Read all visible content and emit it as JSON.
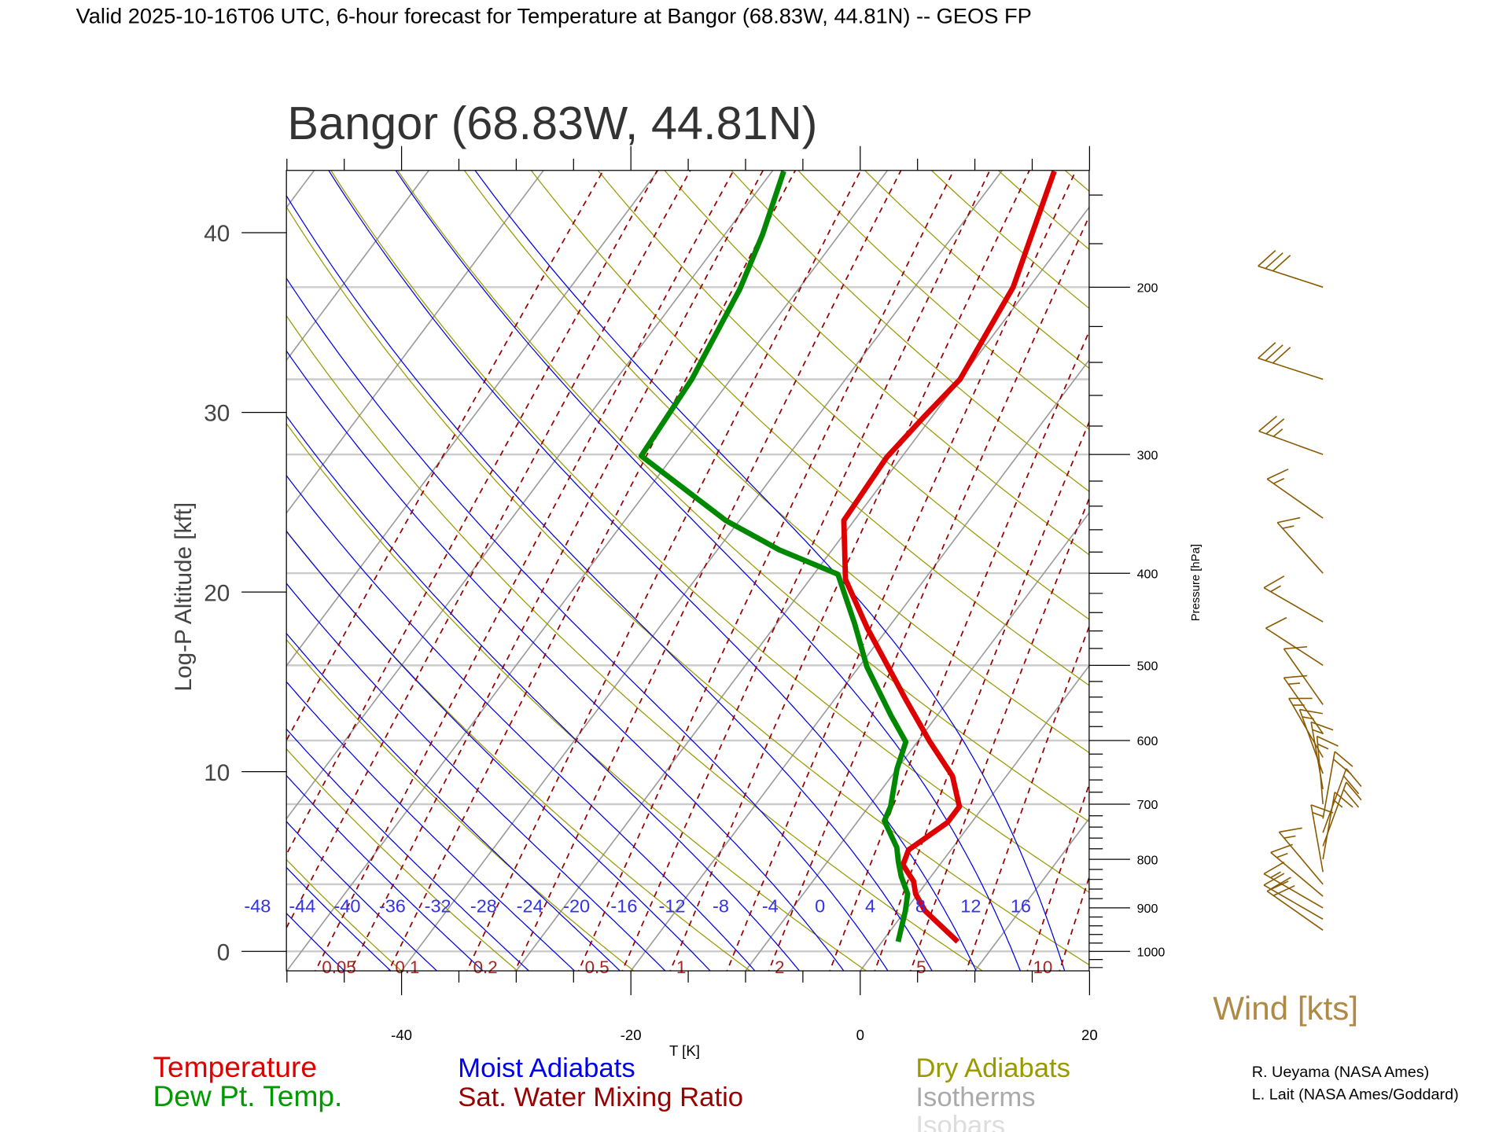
{
  "header": {
    "title": "Valid 2025-10-16T06 UTC, 6-hour forecast for Temperature at Bangor (68.83W, 44.81N) -- GEOS FP"
  },
  "colors": {
    "temperature": "#dd0000",
    "dewpoint": "#008800",
    "moist_adiabat": "#0000dd",
    "mixing_ratio": "#990000",
    "dry_adiabat": "#999900",
    "isotherm": "#9a9a9a",
    "isobar": "#cccccc",
    "wind": "#8a5a00",
    "wind_label": "#b08a45"
  },
  "legend": {
    "temperature": "Temperature",
    "dewpoint": "Dew Pt. Temp.",
    "moist_adiabats": "Moist Adiabats",
    "mixing_ratio": "Sat. Water Mixing Ratio",
    "dry_adiabats": "Dry Adiabats",
    "isotherms": "Isotherms",
    "isobars": "Isobars"
  },
  "credits": [
    "R. Ueyama (NASA Ames)",
    "L. Lait (NASA Ames/Goddard)"
  ],
  "chart_data": {
    "type": "line",
    "subtype": "skew-T log-P diagram",
    "title": "Bangor (68.83W, 44.81N)",
    "xlabel": "T [K]",
    "ylabel": "Log-P Altitude [kft]",
    "y2label": "Pressure [hPa]",
    "wind_label": "Wind [kts]",
    "xlim": [
      -50,
      20
    ],
    "ylim_kft": [
      -1.1,
      43.5
    ],
    "plim_hpa": [
      1050,
      150
    ],
    "x_ticks": [
      "-40",
      "-20",
      "0",
      "20"
    ],
    "x_tick_values": [
      -40,
      -20,
      0,
      20
    ],
    "y_ticks": [
      "0",
      "10",
      "20",
      "30",
      "40"
    ],
    "y_tick_values": [
      0,
      10,
      20,
      30,
      40
    ],
    "p_ticks": [
      "200",
      "300",
      "400",
      "500",
      "600",
      "700",
      "800",
      "900",
      "1000"
    ],
    "p_tick_values": [
      200,
      300,
      400,
      500,
      600,
      700,
      800,
      900,
      1000
    ],
    "isobars_hpa": [
      1000,
      850,
      700,
      600,
      500,
      400,
      300,
      250,
      200
    ],
    "isotherms_c_step": 10,
    "dry_adiabats_k": [
      230,
      240,
      250,
      260,
      270,
      280,
      290,
      300,
      310,
      320,
      330,
      340,
      350,
      360,
      370,
      380,
      390,
      400,
      410,
      420,
      430,
      440,
      450,
      460,
      470,
      480
    ],
    "moist_adiabat_labels": [
      "-48",
      "-44",
      "-40",
      "-36",
      "-32",
      "-28",
      "-24",
      "-20",
      "-16",
      "-12",
      "-8",
      "-4",
      "0",
      "4",
      "8",
      "12",
      "16"
    ],
    "moist_adiabat_values": [
      -48,
      -44,
      -40,
      -36,
      -32,
      -28,
      -24,
      -20,
      -16,
      -12,
      -8,
      -4,
      0,
      4,
      8,
      12,
      16
    ],
    "mixing_ratio_labels": [
      "0.05",
      "0.1",
      "0.2",
      "0.5",
      "1",
      "2",
      "5",
      "10"
    ],
    "mixing_ratio_values": [
      0.05,
      0.1,
      0.2,
      0.5,
      1,
      2,
      5,
      10
    ],
    "mixing_ratio_extra_lines": [
      0.01,
      0.02,
      0.03,
      0.07,
      0.3,
      0.7,
      1.5,
      3,
      4,
      7,
      12,
      15,
      20
    ],
    "series": [
      {
        "name": "Temperature",
        "pressure_hpa": [
          977,
          906,
          870,
          844,
          811,
          782,
          732,
          704,
          654,
          602,
          543,
          457,
          406,
          352,
          302,
          274,
          250,
          200,
          151
        ],
        "temp_c": [
          6.6,
          1.7,
          -0.2,
          -1.2,
          -3.2,
          -3.7,
          -2.1,
          -2.1,
          -4.7,
          -8.9,
          -13.8,
          -21.8,
          -26.9,
          -30.9,
          -31.3,
          -30.7,
          -30.0,
          -31.4,
          -35.4
        ]
      },
      {
        "name": "Dew Pt. Temp.",
        "pressure_hpa": [
          977,
          906,
          870,
          834,
          805,
          777,
          729,
          704,
          643,
          602,
          565,
          502,
          452,
          401,
          378,
          352,
          301,
          250,
          201,
          176,
          151
        ],
        "temp_c": [
          1.4,
          0.0,
          -0.9,
          -2.6,
          -3.8,
          -4.9,
          -7.7,
          -8.1,
          -10.0,
          -11.0,
          -14.0,
          -19.3,
          -23.2,
          -27.9,
          -34.6,
          -41.2,
          -52.8,
          -53.4,
          -55.1,
          -56.7,
          -59.0
        ]
      }
    ],
    "winds": [
      {
        "p": 200,
        "dir": 288,
        "spd": 30
      },
      {
        "p": 250,
        "dir": 288,
        "spd": 30
      },
      {
        "p": 300,
        "dir": 290,
        "spd": 25
      },
      {
        "p": 350,
        "dir": 305,
        "spd": 15
      },
      {
        "p": 400,
        "dir": 318,
        "spd": 15
      },
      {
        "p": 450,
        "dir": 300,
        "spd": 15
      },
      {
        "p": 500,
        "dir": 303,
        "spd": 10
      },
      {
        "p": 550,
        "dir": 325,
        "spd": 10
      },
      {
        "p": 590,
        "dir": 325,
        "spd": 15
      },
      {
        "p": 625,
        "dir": 330,
        "spd": 15
      },
      {
        "p": 650,
        "dir": 340,
        "spd": 15
      },
      {
        "p": 675,
        "dir": 350,
        "spd": 15
      },
      {
        "p": 700,
        "dir": 355,
        "spd": 15
      },
      {
        "p": 725,
        "dir": 10,
        "spd": 20
      },
      {
        "p": 750,
        "dir": 20,
        "spd": 20
      },
      {
        "p": 775,
        "dir": 20,
        "spd": 20
      },
      {
        "p": 800,
        "dir": 10,
        "spd": 15
      },
      {
        "p": 825,
        "dir": 350,
        "spd": 15
      },
      {
        "p": 850,
        "dir": 320,
        "spd": 15
      },
      {
        "p": 875,
        "dir": 310,
        "spd": 15
      },
      {
        "p": 900,
        "dir": 300,
        "spd": 15
      },
      {
        "p": 925,
        "dir": 300,
        "spd": 20
      },
      {
        "p": 950,
        "dir": 305,
        "spd": 20
      }
    ]
  }
}
